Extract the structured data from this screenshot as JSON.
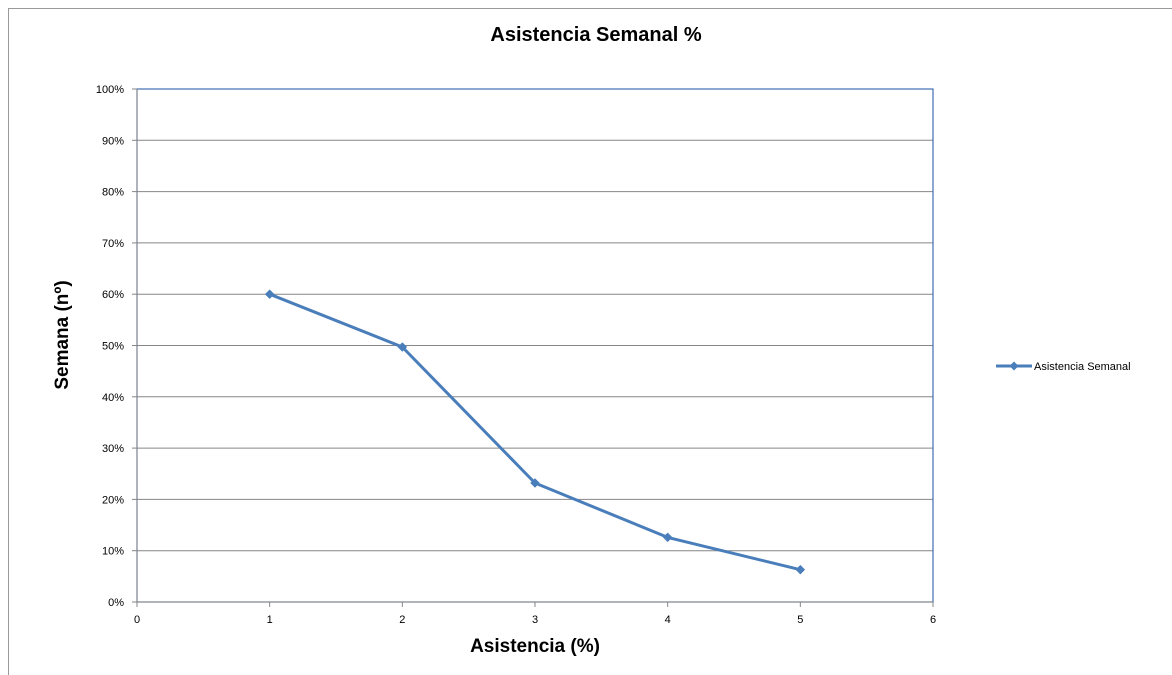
{
  "chart_data": {
    "type": "line",
    "title": "Asistencia Semanal %",
    "xlabel": "Asistencia (%)",
    "ylabel": "Semana (nº)",
    "xlim": [
      0,
      6
    ],
    "ylim": [
      0,
      1
    ],
    "x_ticks": [
      "0",
      "1",
      "2",
      "3",
      "4",
      "5",
      "6"
    ],
    "y_ticks": [
      "0%",
      "10%",
      "20%",
      "30%",
      "40%",
      "50%",
      "60%",
      "70%",
      "80%",
      "90%",
      "100%"
    ],
    "grid": true,
    "legend_position": "right",
    "series": [
      {
        "name": "Asistencia Semanal",
        "color": "#4a7ebb",
        "marker": "diamond",
        "x": [
          1,
          2,
          3,
          4,
          5
        ],
        "y": [
          0.6,
          0.497,
          0.232,
          0.126,
          0.063
        ]
      }
    ]
  }
}
